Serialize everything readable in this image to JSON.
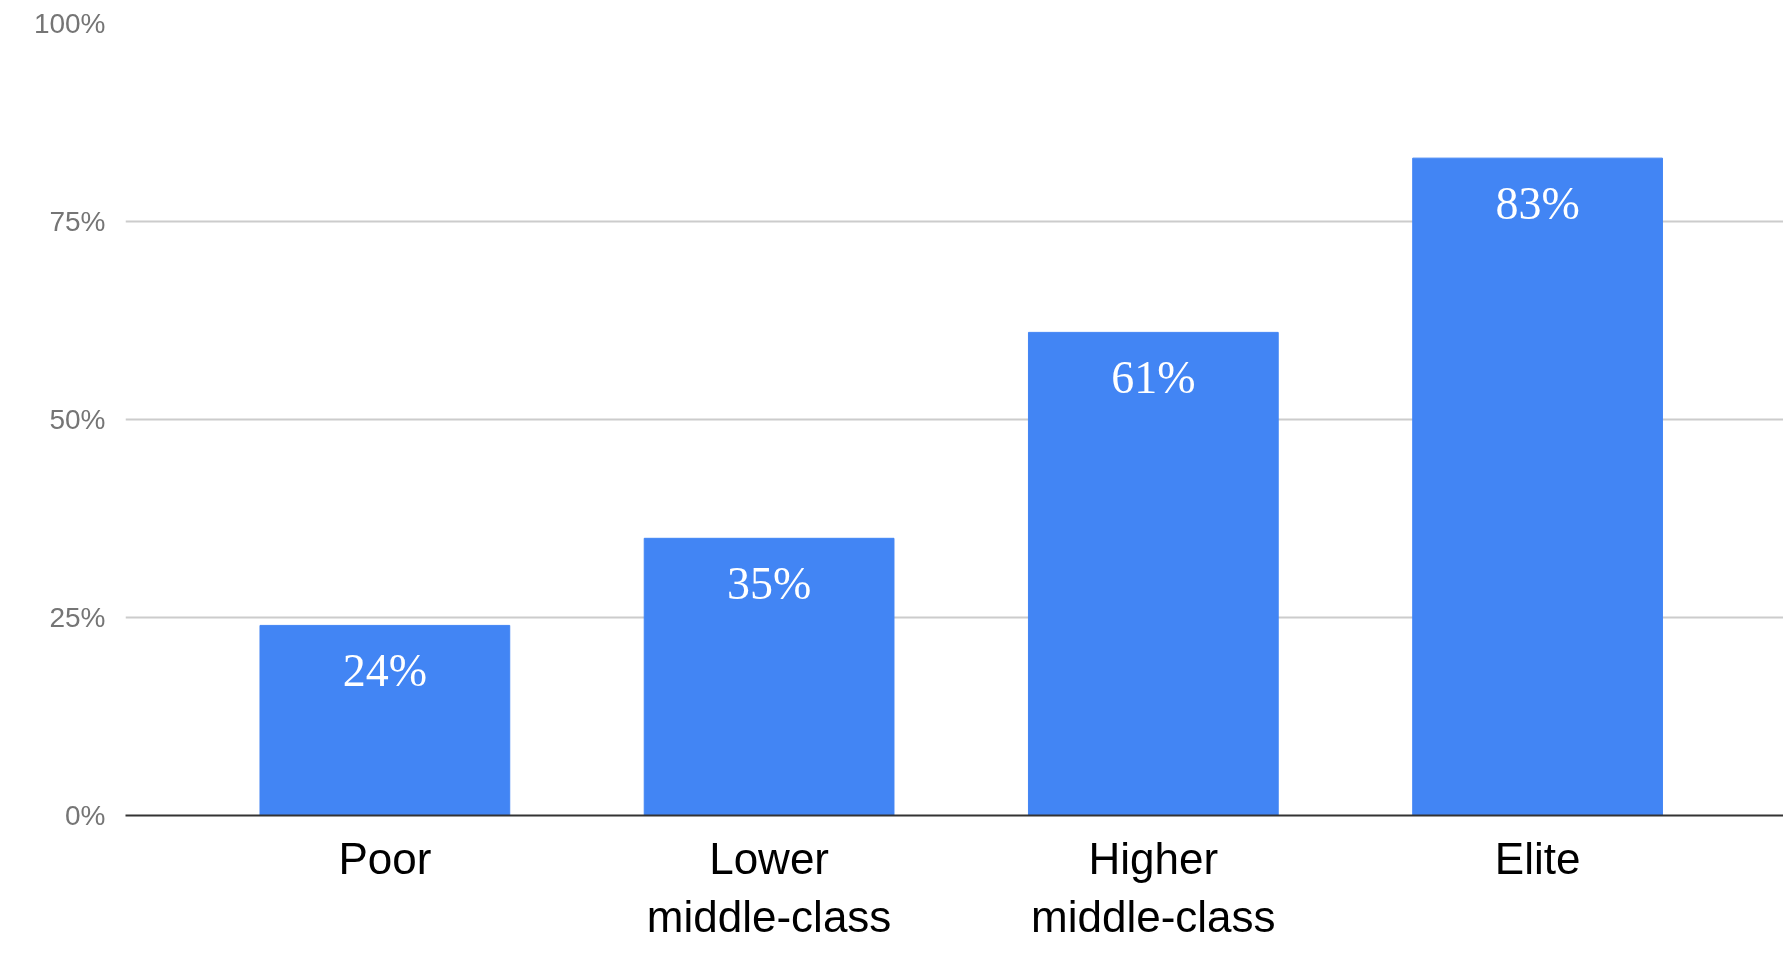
{
  "chart_data": {
    "type": "bar",
    "categories": [
      "Poor",
      "Lower\nmiddle-class",
      "Higher\nmiddle-class",
      "Elite"
    ],
    "values": [
      24,
      35,
      61,
      83
    ],
    "color": "#4285f4",
    "value_labels": [
      "24%",
      "35%",
      "61%",
      "83%"
    ],
    "ylim": [
      0,
      100
    ],
    "yticks": [
      {
        "value": 0,
        "label": "0%"
      },
      {
        "value": 25,
        "label": "25%"
      },
      {
        "value": 50,
        "label": "50%"
      },
      {
        "value": 75,
        "label": "75%"
      },
      {
        "value": 100,
        "label": "100%"
      }
    ],
    "grid": "y"
  }
}
